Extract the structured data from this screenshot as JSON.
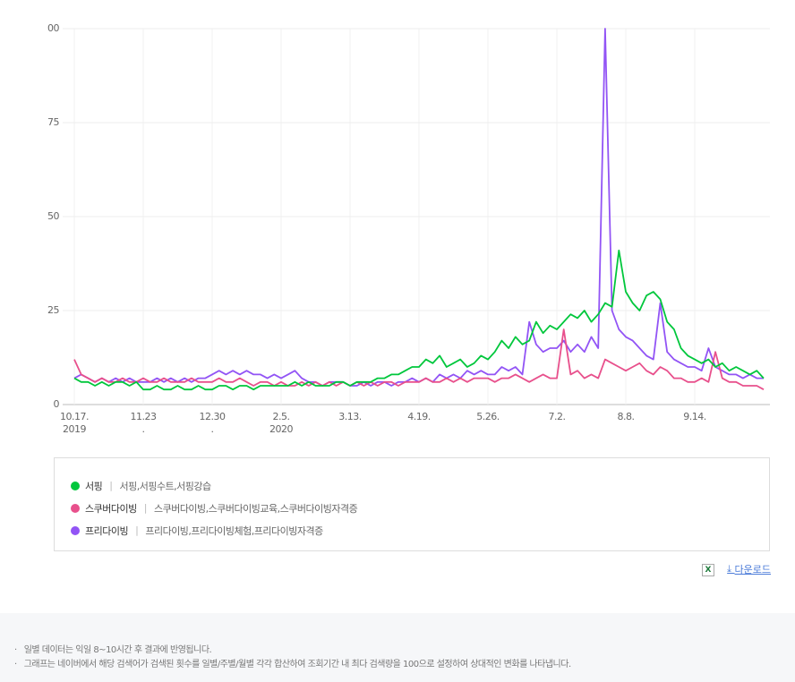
{
  "chart_data": {
    "type": "line",
    "categories": [
      "10.17.",
      null,
      null,
      null,
      null,
      null,
      null,
      null,
      null,
      null,
      "11.23",
      null,
      null,
      null,
      null,
      null,
      null,
      null,
      null,
      null,
      "12.30",
      null,
      null,
      null,
      null,
      null,
      null,
      null,
      null,
      null,
      "2.5.",
      null,
      null,
      null,
      null,
      null,
      null,
      null,
      null,
      null,
      "3.13.",
      null,
      null,
      null,
      null,
      null,
      null,
      null,
      null,
      null,
      "4.19.",
      null,
      null,
      null,
      null,
      null,
      null,
      null,
      null,
      null,
      "5.26.",
      null,
      null,
      null,
      null,
      null,
      null,
      null,
      null,
      null,
      "7.2.",
      null,
      null,
      null,
      null,
      null,
      null,
      null,
      null,
      null,
      "8.8.",
      null,
      null,
      null,
      null,
      null,
      null,
      null,
      null,
      null,
      "9.14.",
      null,
      null,
      null,
      null,
      null,
      null,
      null,
      null,
      null,
      null
    ],
    "category_sublabels": [
      "2019",
      null,
      null,
      null,
      null,
      null,
      null,
      null,
      null,
      null,
      ".",
      null,
      null,
      null,
      null,
      null,
      null,
      null,
      null,
      null,
      ".",
      null,
      null,
      null,
      null,
      null,
      null,
      null,
      null,
      null,
      "2020",
      null,
      null,
      null,
      null,
      null,
      null,
      null,
      null,
      null,
      null,
      null,
      null,
      null,
      null,
      null,
      null,
      null,
      null,
      null,
      null,
      null,
      null,
      null,
      null,
      null,
      null,
      null,
      null,
      null,
      null,
      null,
      null,
      null,
      null,
      null,
      null,
      null,
      null,
      null,
      null,
      null,
      null,
      null,
      null,
      null,
      null,
      null,
      null,
      null,
      null,
      null,
      null,
      null,
      null,
      null,
      null,
      null,
      null,
      null,
      null,
      null,
      null,
      null,
      null,
      null,
      null,
      null,
      null,
      null,
      null
    ],
    "ylim": [
      0,
      100
    ],
    "yticks": [
      0,
      25,
      50,
      75,
      {
        "value": 100,
        "label": "00"
      }
    ],
    "grid": true,
    "series": [
      {
        "name": "서핑",
        "keywords": "서핑,서핑수트,서핑강습",
        "color": "#00c73c",
        "values": [
          7,
          6,
          6,
          5,
          6,
          5,
          6,
          6,
          5,
          6,
          4,
          4,
          5,
          4,
          4,
          5,
          4,
          4,
          5,
          4,
          4,
          5,
          5,
          4,
          5,
          5,
          4,
          5,
          5,
          5,
          5,
          5,
          6,
          5,
          6,
          5,
          5,
          5,
          6,
          6,
          5,
          6,
          6,
          6,
          7,
          7,
          8,
          8,
          9,
          10,
          10,
          12,
          11,
          13,
          10,
          11,
          12,
          10,
          11,
          13,
          12,
          14,
          17,
          15,
          18,
          16,
          17,
          22,
          19,
          21,
          20,
          22,
          24,
          23,
          25,
          22,
          24,
          27,
          26,
          41,
          30,
          27,
          25,
          29,
          30,
          28,
          22,
          20,
          15,
          13,
          12,
          11,
          12,
          10,
          11,
          9,
          10,
          9,
          8,
          9,
          7
        ]
      },
      {
        "name": "스쿠버다이빙",
        "keywords": "스쿠버다이빙,스쿠버다이빙교육,스쿠버다이빙자격증",
        "color": "#e8508c",
        "values": [
          12,
          8,
          7,
          6,
          7,
          6,
          6,
          7,
          6,
          6,
          7,
          6,
          6,
          7,
          6,
          6,
          6,
          7,
          6,
          6,
          6,
          7,
          6,
          6,
          7,
          6,
          5,
          6,
          6,
          5,
          6,
          5,
          5,
          6,
          5,
          6,
          5,
          6,
          5,
          6,
          5,
          6,
          5,
          6,
          5,
          6,
          6,
          5,
          6,
          6,
          6,
          7,
          6,
          6,
          7,
          6,
          7,
          6,
          7,
          7,
          7,
          6,
          7,
          7,
          8,
          7,
          6,
          7,
          8,
          7,
          7,
          20,
          8,
          9,
          7,
          8,
          7,
          12,
          11,
          10,
          9,
          10,
          11,
          9,
          8,
          10,
          9,
          7,
          7,
          6,
          6,
          7,
          6,
          14,
          7,
          6,
          6,
          5,
          5,
          5,
          4
        ]
      },
      {
        "name": "프리다이빙",
        "keywords": "프리다이빙,프리다이빙체험,프리다이빙자격증",
        "color": "#9254f5",
        "values": [
          7,
          8,
          7,
          6,
          7,
          6,
          7,
          6,
          7,
          6,
          6,
          6,
          7,
          6,
          7,
          6,
          7,
          6,
          7,
          7,
          8,
          9,
          8,
          9,
          8,
          9,
          8,
          8,
          7,
          8,
          7,
          8,
          9,
          7,
          6,
          6,
          5,
          6,
          6,
          6,
          5,
          5,
          6,
          5,
          6,
          6,
          5,
          6,
          6,
          7,
          6,
          7,
          6,
          8,
          7,
          8,
          7,
          9,
          8,
          9,
          8,
          8,
          10,
          9,
          10,
          8,
          22,
          16,
          14,
          15,
          15,
          17,
          14,
          16,
          14,
          18,
          15,
          100,
          25,
          20,
          18,
          17,
          15,
          13,
          12,
          27,
          14,
          12,
          11,
          10,
          10,
          9,
          15,
          10,
          9,
          8,
          8,
          7,
          8,
          7,
          7
        ]
      }
    ]
  },
  "download_label": "다운로드",
  "notes": [
    "일별 데이터는 익일 8~10시간 후 결과에 반영됩니다.",
    "그래프는 네이버에서 해당 검색어가 검색된 횟수를 일별/주별/월별 각각 합산하여 조회기간 내 최다 검색량을 100으로 설정하여 상대적인 변화를 나타냅니다."
  ]
}
